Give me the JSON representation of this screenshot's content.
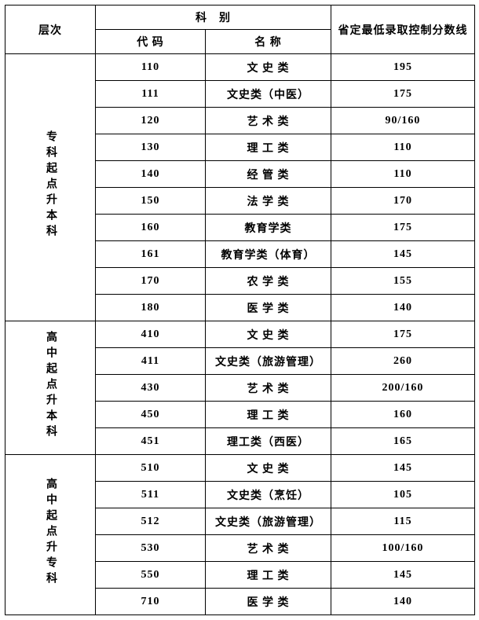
{
  "headers": {
    "level": "层次",
    "subject": "科　别",
    "code": "代 码",
    "name": "名 称",
    "score": "省定最低录取控制分数线"
  },
  "groups": [
    {
      "label": "专科起点升本科",
      "rows": [
        {
          "code": "110",
          "name": "文 史 类",
          "score": "195"
        },
        {
          "code": "111",
          "name": "文史类（中医）",
          "score": "175"
        },
        {
          "code": "120",
          "name": "艺 术 类",
          "score": "90/160"
        },
        {
          "code": "130",
          "name": "理 工 类",
          "score": "110"
        },
        {
          "code": "140",
          "name": "经 管 类",
          "score": "110"
        },
        {
          "code": "150",
          "name": "法 学 类",
          "score": "170"
        },
        {
          "code": "160",
          "name": "教育学类",
          "score": "175"
        },
        {
          "code": "161",
          "name": "教育学类（体育）",
          "score": "145"
        },
        {
          "code": "170",
          "name": "农 学 类",
          "score": "155"
        },
        {
          "code": "180",
          "name": "医 学 类",
          "score": "140"
        }
      ]
    },
    {
      "label": "高中起点升本科",
      "rows": [
        {
          "code": "410",
          "name": "文 史 类",
          "score": "175"
        },
        {
          "code": "411",
          "name": "文史类（旅游管理）",
          "score": "260"
        },
        {
          "code": "430",
          "name": "艺 术 类",
          "score": "200/160"
        },
        {
          "code": "450",
          "name": "理 工 类",
          "score": "160"
        },
        {
          "code": "451",
          "name": "理工类（西医）",
          "score": "165"
        }
      ]
    },
    {
      "label": "高中起点升专科",
      "rows": [
        {
          "code": "510",
          "name": "文 史 类",
          "score": "145"
        },
        {
          "code": "511",
          "name": "文史类（烹饪）",
          "score": "105"
        },
        {
          "code": "512",
          "name": "文史类（旅游管理）",
          "score": "115"
        },
        {
          "code": "530",
          "name": "艺 术 类",
          "score": "100/160"
        },
        {
          "code": "550",
          "name": "理 工 类",
          "score": "145"
        },
        {
          "code": "710",
          "name": "医 学 类",
          "score": "140"
        }
      ]
    }
  ]
}
